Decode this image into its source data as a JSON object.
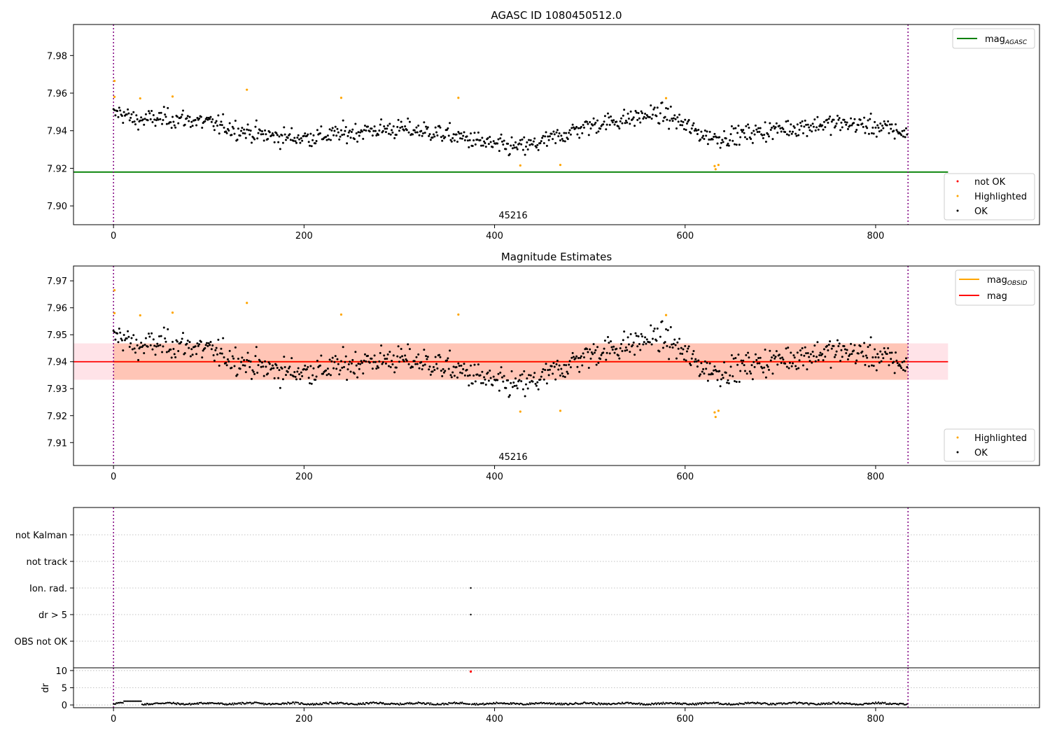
{
  "chart_data": [
    {
      "type": "scatter",
      "title": "AGASC ID 1080450512.0",
      "obsid_label": "45216",
      "xlim": [
        -42,
        972
      ],
      "ylim": [
        7.89,
        7.9965
      ],
      "x_ticks": [
        0,
        200,
        400,
        600,
        800
      ],
      "y_ticks": [
        7.9,
        7.92,
        7.94,
        7.96,
        7.98
      ],
      "grid": false,
      "obs_boundaries": [
        0,
        834
      ],
      "reference_lines": [
        {
          "name": "mag_AGASC",
          "label_main": "mag",
          "label_sub": "AGASC",
          "color": "#008000",
          "y": 7.918,
          "x_range": [
            -42,
            876
          ]
        }
      ],
      "legend_lines_position": "upper right",
      "legend_points_position": "lower right",
      "series": [
        {
          "name": "not OK",
          "color": "#ff0000",
          "points": []
        },
        {
          "name": "Highlighted",
          "color": "#ffa500",
          "points": [
            [
              1,
              7.9665
            ],
            [
              1,
              7.958
            ],
            [
              28,
              7.9572
            ],
            [
              62,
              7.9582
            ],
            [
              140,
              7.9618
            ],
            [
              239,
              7.9575
            ],
            [
              362,
              7.9575
            ],
            [
              427,
              7.9215
            ],
            [
              469,
              7.9218
            ],
            [
              580,
              7.9573
            ],
            [
              631,
              7.9212
            ],
            [
              632,
              7.9195
            ],
            [
              635,
              7.9218
            ]
          ]
        },
        {
          "name": "OK",
          "color": "#000000",
          "points": [],
          "n_points": 834,
          "mean": 7.9402,
          "spread": 0.0065
        }
      ]
    },
    {
      "type": "scatter",
      "title": "Magnitude Estimates",
      "obsid_label": "45216",
      "xlim": [
        -42,
        972
      ],
      "ylim": [
        7.9015,
        7.9755
      ],
      "x_ticks": [
        0,
        200,
        400,
        600,
        800
      ],
      "y_ticks": [
        7.91,
        7.92,
        7.93,
        7.94,
        7.95,
        7.96,
        7.97
      ],
      "grid": false,
      "obs_boundaries": [
        0,
        834
      ],
      "reference_lines": [
        {
          "name": "mag",
          "label_main": "mag",
          "label_sub": "",
          "color": "#ff0000",
          "y": 7.94,
          "x_range": [
            -42,
            876
          ],
          "band": [
            7.9333,
            7.9468
          ],
          "band_color": "#ffc0cb"
        },
        {
          "name": "mag_OBSID",
          "label_main": "mag",
          "label_sub": "OBSID",
          "color": "#ffa500",
          "y": 7.94,
          "x_range": [
            0,
            834
          ],
          "band": [
            7.9333,
            7.9468
          ],
          "band_color": "#ffa07a"
        }
      ],
      "legend_lines_position": "upper right",
      "legend_points_position": "lower right",
      "series": [
        {
          "name": "Highlighted",
          "color": "#ffa500",
          "points": [
            [
              1,
              7.9665
            ],
            [
              1,
              7.958
            ],
            [
              28,
              7.9572
            ],
            [
              62,
              7.9582
            ],
            [
              140,
              7.9618
            ],
            [
              239,
              7.9575
            ],
            [
              362,
              7.9575
            ],
            [
              427,
              7.9215
            ],
            [
              469,
              7.9218
            ],
            [
              580,
              7.9573
            ],
            [
              631,
              7.9212
            ],
            [
              632,
              7.9195
            ],
            [
              635,
              7.9218
            ]
          ]
        },
        {
          "name": "OK",
          "color": "#000000",
          "points": [],
          "n_points": 834,
          "mean": 7.9402,
          "spread": 0.0065
        }
      ]
    },
    {
      "type": "scatter",
      "title": "",
      "xlim": [
        -42,
        972
      ],
      "x_ticks": [
        0,
        200,
        400,
        600,
        800
      ],
      "obs_boundaries": [
        0,
        834
      ],
      "flag_categories": [
        "OBS not OK",
        "dr > 5",
        "Ion. rad.",
        "not track",
        "not Kalman"
      ],
      "grid": "dotted horizontal",
      "flag_points": [
        {
          "category": "Ion. rad.",
          "x": 375
        },
        {
          "category": "dr > 5",
          "x": 375
        }
      ]
    },
    {
      "type": "scatter",
      "title": "",
      "ylabel": "dr",
      "xlim": [
        -42,
        972
      ],
      "ylim": [
        -0.8,
        10.8
      ],
      "x_ticks": [
        0,
        200,
        400,
        600,
        800
      ],
      "y_ticks": [
        0,
        5,
        10
      ],
      "grid": "dotted horizontal",
      "obs_boundaries": [
        0,
        834
      ],
      "outliers": [
        {
          "x": 375,
          "y": 9.7,
          "color": "#ff0000"
        }
      ],
      "series": [
        {
          "name": "dr",
          "color": "#000000",
          "n_points": 834,
          "typical": 0.4
        }
      ]
    }
  ]
}
